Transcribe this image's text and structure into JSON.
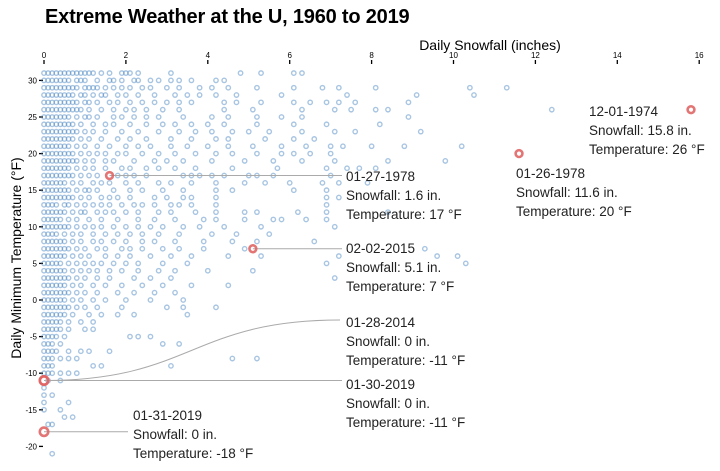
{
  "chart_data": {
    "type": "scatter",
    "title": "Extreme Weather at the U, 1960 to 2019",
    "xlabel": "Daily Snowfall (inches)",
    "ylabel": "Daily Minimum Temperature (°F)",
    "xlim": [
      0,
      16
    ],
    "ylim": [
      -21,
      32
    ],
    "xticks": [
      0,
      2,
      4,
      6,
      8,
      10,
      12,
      14,
      16
    ],
    "yticks": [
      30,
      25,
      20,
      15,
      10,
      5,
      0,
      -5,
      -10,
      -15,
      -20
    ],
    "grid": false,
    "colors": {
      "point": "#3f7fbf",
      "highlight": "#e06666",
      "leader": "#aaaaaa"
    },
    "rows": [
      {
        "t": 31,
        "s": [
          0,
          0.1,
          0.2,
          0.3,
          0.4,
          0.5,
          0.6,
          0.7,
          0.8,
          0.9,
          1,
          1.1,
          1.2,
          1.4,
          1.6,
          1.9,
          2,
          2.1,
          2.3,
          3.1,
          4.8,
          5.3,
          6.1,
          6.3
        ]
      },
      {
        "t": 30,
        "s": [
          0,
          0.1,
          0.2,
          0.3,
          0.4,
          0.5,
          0.6,
          0.8,
          0.9,
          1,
          1.3,
          1.6,
          1.7,
          1.9,
          2.2,
          2.3,
          2.6,
          2.8,
          3.1,
          3.3,
          3.6,
          4.2,
          4.4
        ]
      },
      {
        "t": 29,
        "s": [
          0,
          0.1,
          0.2,
          0.3,
          0.4,
          0.5,
          0.6,
          0.7,
          0.8,
          1,
          1.1,
          1.2,
          1.3,
          1.5,
          1.7,
          1.9,
          2.1,
          2.4,
          2.6,
          3,
          3.3,
          3.8,
          4.1,
          4.5,
          5.2,
          6.1,
          6.8,
          7.2,
          8.1,
          10.4,
          11.3
        ]
      },
      {
        "t": 28,
        "s": [
          0,
          0.1,
          0.2,
          0.3,
          0.4,
          0.5,
          0.6,
          0.7,
          0.9,
          1,
          1.2,
          1.4,
          1.5,
          1.8,
          2,
          2.3,
          2.7,
          3.2,
          3.5,
          3.8,
          4.2,
          4.7,
          5.8,
          7.4,
          9.1,
          10.5
        ]
      },
      {
        "t": 27,
        "s": [
          0,
          0.1,
          0.2,
          0.3,
          0.4,
          0.5,
          0.6,
          0.7,
          0.8,
          1,
          1.1,
          1.3,
          1.6,
          1.8,
          2.1,
          2.4,
          2.7,
          3,
          3.3,
          3.6,
          4.4,
          4.7,
          5.3,
          6.1,
          6.5,
          6.9,
          7.2,
          7.6,
          8.9
        ]
      },
      {
        "t": 26,
        "s": [
          0,
          0.1,
          0.2,
          0.3,
          0.4,
          0.5,
          0.6,
          0.7,
          0.8,
          0.9,
          1.1,
          1.4,
          1.7,
          2,
          2.2,
          2.5,
          2.9,
          3.3,
          4.4,
          5.1,
          6.3,
          7.1,
          7.5,
          8.1,
          8.4,
          12.4
        ]
      },
      {
        "t": 25,
        "s": [
          0,
          0.1,
          0.2,
          0.3,
          0.4,
          0.5,
          0.6,
          0.8,
          1,
          1.1,
          1.3,
          1.7,
          1.9,
          2.2,
          2.5,
          2.8,
          3.4,
          4.1,
          4.5,
          5.2,
          5.8,
          6.3,
          8.9
        ]
      },
      {
        "t": 24,
        "s": [
          0,
          0.1,
          0.2,
          0.3,
          0.4,
          0.5,
          0.6,
          0.7,
          0.9,
          1.2,
          1.5,
          1.7,
          2.1,
          2.5,
          2.9,
          3.2,
          3.6,
          4,
          4.4,
          5.2,
          6.1,
          6.9,
          8.2
        ]
      },
      {
        "t": 23,
        "s": [
          0,
          0.1,
          0.2,
          0.3,
          0.4,
          0.5,
          0.6,
          0.7,
          0.8,
          1,
          1.2,
          1.5,
          1.9,
          2.3,
          2.8,
          3.3,
          3.7,
          4.1,
          4.6,
          5,
          5.5,
          6.3,
          7.1,
          7.6,
          9.2
        ]
      },
      {
        "t": 22,
        "s": [
          0,
          0.1,
          0.2,
          0.3,
          0.4,
          0.5,
          0.6,
          0.7,
          0.9,
          1.1,
          1.4,
          1.8,
          2.1,
          2.5,
          3.1,
          3.6,
          4.2,
          4.5,
          5.4,
          6.1,
          6.6
        ]
      },
      {
        "t": 21,
        "s": [
          0,
          0.1,
          0.2,
          0.3,
          0.4,
          0.5,
          0.6,
          0.8,
          1,
          1.3,
          1.6,
          2,
          2.3,
          2.6,
          3.1,
          3.5,
          4,
          4.5,
          5.1,
          5.8,
          6.4,
          7,
          7.3,
          8,
          8.8,
          10.2
        ]
      },
      {
        "t": 20,
        "s": [
          0,
          0.1,
          0.2,
          0.3,
          0.4,
          0.5,
          0.6,
          0.7,
          0.9,
          1.1,
          1.3,
          1.5,
          1.8,
          2,
          2.4,
          2.8,
          3.2,
          3.7,
          4.2,
          4.6,
          5.2,
          5.8,
          6.1,
          6.5,
          7
        ]
      },
      {
        "t": 19,
        "s": [
          0,
          0.1,
          0.2,
          0.3,
          0.4,
          0.5,
          0.6,
          0.7,
          0.8,
          1,
          1.2,
          1.5,
          1.7,
          2.2,
          2.7,
          3,
          3.4,
          4.1,
          4.9,
          5.6,
          6.3,
          7.1,
          8.4,
          9.8
        ]
      },
      {
        "t": 18,
        "s": [
          0,
          0.1,
          0.2,
          0.3,
          0.4,
          0.5,
          0.6,
          0.8,
          1,
          1.2,
          1.5,
          1.9,
          2.1,
          2.5,
          2.8,
          3.2,
          3.7,
          4.6,
          5.7,
          6.9,
          7.4,
          7.7,
          8.1
        ]
      },
      {
        "t": 17,
        "s": [
          0,
          0.1,
          0.2,
          0.3,
          0.4,
          0.5,
          0.6,
          0.7,
          0.9,
          1.1,
          1.3,
          1.8,
          2,
          2.2,
          2.5,
          3.4,
          3.6,
          3.8,
          4.1,
          4.4,
          5,
          5.2,
          5.6,
          7
        ]
      },
      {
        "t": 16,
        "s": [
          0,
          0.1,
          0.2,
          0.3,
          0.4,
          0.5,
          0.7,
          0.9,
          1.2,
          1.4,
          1.6,
          2,
          2.3,
          2.8,
          3.1,
          3.6,
          4.2,
          4.9,
          5.4,
          6,
          6.8,
          7.2,
          7.9
        ]
      },
      {
        "t": 15,
        "s": [
          0,
          0.1,
          0.2,
          0.3,
          0.4,
          0.5,
          0.6,
          0.8,
          1,
          1.1,
          1.3,
          1.7,
          2.1,
          2.4,
          2.9,
          3.4,
          4.2,
          4.6,
          6.1,
          6.9
        ]
      },
      {
        "t": 14,
        "s": [
          0,
          0.1,
          0.2,
          0.3,
          0.4,
          0.5,
          0.6,
          0.7,
          0.9,
          1.1,
          1.4,
          1.6,
          1.8,
          2.1,
          2.7,
          3,
          3.4,
          3.6,
          4.2,
          6.9,
          7.2
        ]
      },
      {
        "t": 13,
        "s": [
          0,
          0.1,
          0.2,
          0.3,
          0.5,
          0.6,
          0.8,
          1,
          1.2,
          1.4,
          1.6,
          1.9,
          2.2,
          2.4,
          2.7,
          3.1,
          3.3,
          3.6,
          4.2,
          6.9
        ]
      },
      {
        "t": 12,
        "s": [
          0,
          0.1,
          0.2,
          0.3,
          0.4,
          0.5,
          0.7,
          0.9,
          1,
          1.3,
          1.5,
          1.7,
          2,
          2.3,
          2.8,
          3.1,
          3.7,
          4.2,
          4.9,
          5.2,
          6.2,
          6.9,
          8.4
        ]
      },
      {
        "t": 11,
        "s": [
          0,
          0.1,
          0.2,
          0.3,
          0.4,
          0.6,
          0.8,
          1.1,
          1.4,
          1.8,
          2.3,
          2.7,
          3.2,
          3.9,
          4.2,
          4.9,
          5.6,
          5.8,
          6.4,
          6.9
        ]
      },
      {
        "t": 10,
        "s": [
          0,
          0.1,
          0.2,
          0.3,
          0.4,
          0.5,
          0.6,
          0.8,
          1,
          1.2,
          1.4,
          1.7,
          2,
          2.3,
          2.6,
          2.9,
          3.4,
          3.8,
          4.4,
          5.3,
          7.1
        ]
      },
      {
        "t": 9,
        "s": [
          0,
          0.1,
          0.2,
          0.3,
          0.5,
          0.7,
          0.9,
          1.2,
          1.5,
          1.8,
          2.1,
          2.4,
          2.8,
          3.3,
          4.1,
          4.7,
          5.5
        ]
      },
      {
        "t": 8,
        "s": [
          0,
          0.1,
          0.2,
          0.3,
          0.4,
          0.5,
          0.7,
          0.9,
          1.2,
          1.4,
          1.7,
          2,
          2.4,
          2.7,
          3.2,
          3.9,
          4.6,
          5.2,
          6.6
        ]
      },
      {
        "t": 7,
        "s": [
          0,
          0.1,
          0.2,
          0.3,
          0.4,
          0.5,
          0.6,
          0.8,
          1,
          1.3,
          1.5,
          1.9,
          2.1,
          2.4,
          2.9,
          3.3,
          3.9,
          4.9,
          9.3
        ]
      },
      {
        "t": 6,
        "s": [
          0,
          0.1,
          0.2,
          0.3,
          0.4,
          0.5,
          0.7,
          0.9,
          1.1,
          1.5,
          1.8,
          2.1,
          2.6,
          3.1,
          3.6,
          4.5,
          5.3,
          7.2,
          9.6,
          10.1
        ]
      },
      {
        "t": 5,
        "s": [
          0,
          0.1,
          0.2,
          0.3,
          0.4,
          0.6,
          0.8,
          1,
          1.2,
          1.4,
          1.7,
          2,
          2.3,
          2.9,
          3.5,
          6.9,
          10.3
        ]
      },
      {
        "t": 4,
        "s": [
          0,
          0.1,
          0.2,
          0.3,
          0.4,
          0.5,
          0.7,
          0.9,
          1.1,
          1.3,
          1.6,
          1.9,
          2.3,
          2.8,
          3.2,
          4,
          5.1
        ]
      },
      {
        "t": 3,
        "s": [
          0,
          0.1,
          0.2,
          0.3,
          0.4,
          0.5,
          0.6,
          0.8,
          1,
          1.3,
          1.6,
          2.2,
          2.6,
          3.1,
          7.1
        ]
      },
      {
        "t": 2,
        "s": [
          0,
          0.1,
          0.2,
          0.3,
          0.4,
          0.5,
          0.7,
          0.9,
          1.2,
          1.5,
          1.9,
          2.4,
          2.9,
          3.6,
          4.5
        ]
      },
      {
        "t": 1,
        "s": [
          0,
          0.1,
          0.2,
          0.3,
          0.4,
          0.5,
          0.6,
          0.8,
          1,
          1.3,
          1.8,
          2.2,
          2.7,
          3.2
        ]
      },
      {
        "t": 0,
        "s": [
          0,
          0.1,
          0.2,
          0.3,
          0.4,
          0.5,
          0.7,
          0.9,
          1.2,
          1.5,
          2,
          2.6,
          3.4
        ]
      },
      {
        "t": -1,
        "s": [
          0,
          0.1,
          0.2,
          0.3,
          0.4,
          0.5,
          0.6,
          0.8,
          1,
          1.3,
          1.9,
          3,
          3.4,
          4.2
        ]
      },
      {
        "t": -2,
        "s": [
          0,
          0.1,
          0.2,
          0.3,
          0.4,
          0.5,
          0.7,
          1.1,
          1.4,
          1.8,
          2.2,
          3.5
        ]
      },
      {
        "t": -3,
        "s": [
          0,
          0.1,
          0.2,
          0.3,
          0.4,
          0.6,
          0.9,
          1.2
        ]
      },
      {
        "t": -4,
        "s": [
          0,
          0.1,
          0.2,
          0.3,
          0.4,
          0.6,
          1,
          1.2
        ]
      },
      {
        "t": -5,
        "s": [
          0,
          0.1,
          0.2,
          0.3,
          0.5,
          2.1,
          2.3,
          2.6
        ]
      },
      {
        "t": -6,
        "s": [
          0,
          0.1,
          0.2,
          0.4,
          2.9,
          3.3
        ]
      },
      {
        "t": -7,
        "s": [
          0,
          0.1,
          0.2,
          0.3,
          0.6,
          0.9,
          1.1,
          1.6
        ]
      },
      {
        "t": -8,
        "s": [
          0,
          0.1,
          0.2,
          0.4,
          0.6,
          0.8,
          4.6,
          5.2
        ]
      },
      {
        "t": -9,
        "s": [
          0,
          0.1,
          0.2,
          1.2,
          1.4,
          3.1
        ]
      },
      {
        "t": -10,
        "s": [
          0,
          0.1,
          0.2,
          0.4,
          0.6,
          0.8
        ]
      },
      {
        "t": -11,
        "s": [
          0.1,
          0.4
        ]
      },
      {
        "t": -12,
        "s": [
          0
        ]
      },
      {
        "t": -13,
        "s": [
          0,
          0.2
        ]
      },
      {
        "t": -14,
        "s": [
          0,
          0.6
        ]
      },
      {
        "t": -15,
        "s": [
          0,
          0.4
        ]
      },
      {
        "t": -16,
        "s": [
          0.5,
          0.7
        ]
      },
      {
        "t": -17,
        "s": [
          0.1,
          0.2
        ]
      },
      {
        "t": -21,
        "s": [
          0.2
        ]
      }
    ],
    "highlights": [
      {
        "date": "12-01-1974",
        "snowfall": 15.8,
        "temperature": 26,
        "lines": [
          "12-01-1974",
          "Snowfall: 15.8 in.",
          "Temperature: 26 °F"
        ]
      },
      {
        "date": "01-26-1978",
        "snowfall": 11.6,
        "temperature": 20,
        "lines": [
          "01-26-1978",
          "Snowfall: 11.6 in.",
          "Temperature: 20 °F"
        ]
      },
      {
        "date": "01-27-1978",
        "snowfall": 1.6,
        "temperature": 17,
        "lines": [
          "01-27-1978",
          "Snowfall: 1.6 in.",
          "Temperature: 17 °F"
        ]
      },
      {
        "date": "02-02-2015",
        "snowfall": 5.1,
        "temperature": 7,
        "lines": [
          "02-02-2015",
          "Snowfall: 5.1 in.",
          "Temperature: 7 °F"
        ]
      },
      {
        "date": "01-28-2014",
        "snowfall": 0,
        "temperature": -11,
        "lines": [
          "01-28-2014",
          "Snowfall: 0 in.",
          "Temperature: -11 °F"
        ]
      },
      {
        "date": "01-30-2019",
        "snowfall": 0,
        "temperature": -11,
        "lines": [
          "01-30-2019",
          "Snowfall: 0 in.",
          "Temperature: -11 °F"
        ]
      },
      {
        "date": "01-31-2019",
        "snowfall": 0,
        "temperature": -18,
        "lines": [
          "01-31-2019",
          "Snowfall: 0 in.",
          "Temperature: -18 °F"
        ]
      }
    ]
  }
}
